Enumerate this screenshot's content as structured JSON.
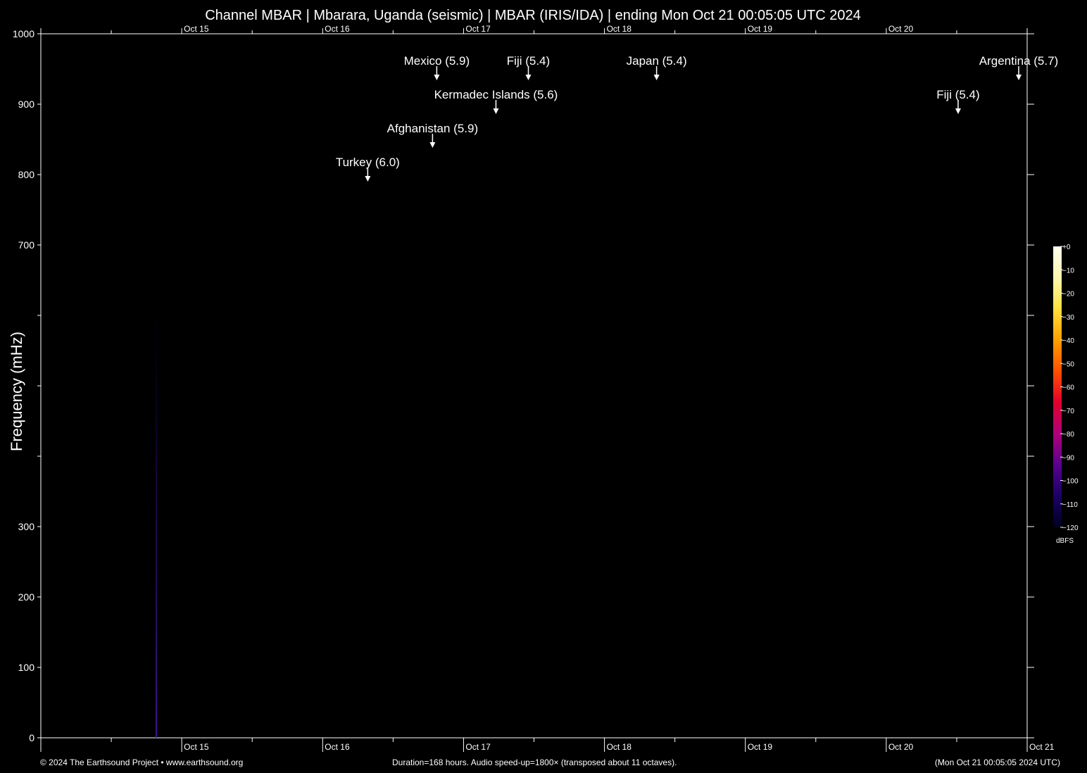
{
  "chart_data": {
    "type": "heatmap",
    "title": "Channel MBAR | Mbarara, Uganda (seismic) | MBAR (IRIS/IDA) | ending Mon Oct 21 00:05:05 UTC 2024",
    "xlabel": "",
    "ylabel": "Frequency (mHz)",
    "ylim": [
      0,
      1000
    ],
    "y_ticks": [
      {
        "value": 0,
        "label": "0"
      },
      {
        "value": 100,
        "label": "100"
      },
      {
        "value": 200,
        "label": "200"
      },
      {
        "value": 300,
        "label": "300"
      },
      {
        "value": 400,
        "label": ""
      },
      {
        "value": 500,
        "label": ""
      },
      {
        "value": 600,
        "label": ""
      },
      {
        "value": 700,
        "label": "700"
      },
      {
        "value": 800,
        "label": "800"
      },
      {
        "value": 900,
        "label": "900"
      },
      {
        "value": 1000,
        "label": "1000"
      }
    ],
    "x_range_days": [
      "Oct 14 00:05",
      "Oct 21 00:05"
    ],
    "x_major_ticks": [
      {
        "day": 1,
        "label": "Oct 15"
      },
      {
        "day": 2,
        "label": "Oct 16"
      },
      {
        "day": 3,
        "label": "Oct 17"
      },
      {
        "day": 4,
        "label": "Oct 18"
      },
      {
        "day": 5,
        "label": "Oct 19"
      },
      {
        "day": 6,
        "label": "Oct 20"
      },
      {
        "day": 7,
        "label": "Oct 21"
      }
    ],
    "events": [
      {
        "label": "Mexico (5.9)",
        "day": 2.81,
        "row": 1
      },
      {
        "label": "Fiji (5.4)",
        "day": 3.46,
        "row": 1
      },
      {
        "label": "Japan (5.4)",
        "day": 4.37,
        "row": 1
      },
      {
        "label": "Argentina (5.7)",
        "day": 6.94,
        "row": 1
      },
      {
        "label": "Kermadec Islands (5.6)",
        "day": 3.23,
        "row": 2
      },
      {
        "label": "Fiji (5.4)",
        "day": 6.51,
        "row": 2
      },
      {
        "label": "Afghanistan (5.9)",
        "day": 2.78,
        "row": 3
      },
      {
        "label": "Turkey (6.0)",
        "day": 2.32,
        "row": 4
      }
    ],
    "signal": {
      "day": 0.82,
      "freq_max": 640,
      "level_dbfs": -95
    },
    "colorbar": {
      "unit": "dBFS",
      "range": [
        -120,
        0
      ],
      "ticks": [
        "+0",
        "−10",
        "−20",
        "−30",
        "−40",
        "−50",
        "−60",
        "−70",
        "−80",
        "−90",
        "−100",
        "−110",
        "−120"
      ],
      "stops": [
        "#000020",
        "#1a0066",
        "#5a0090",
        "#b0007a",
        "#e0002a",
        "#ff5000",
        "#ffa000",
        "#ffe040",
        "#fff6b0",
        "#fffff0"
      ]
    },
    "background_color": "#000000",
    "text_color": "#ffffff"
  },
  "footer": {
    "left": "© 2024 The Earthsound Project • www.earthsound.org",
    "center": "Duration=168 hours. Audio speed-up=1800× (transposed about 11 octaves).",
    "right": "(Mon Oct 21 00:05:05 2024 UTC)"
  }
}
